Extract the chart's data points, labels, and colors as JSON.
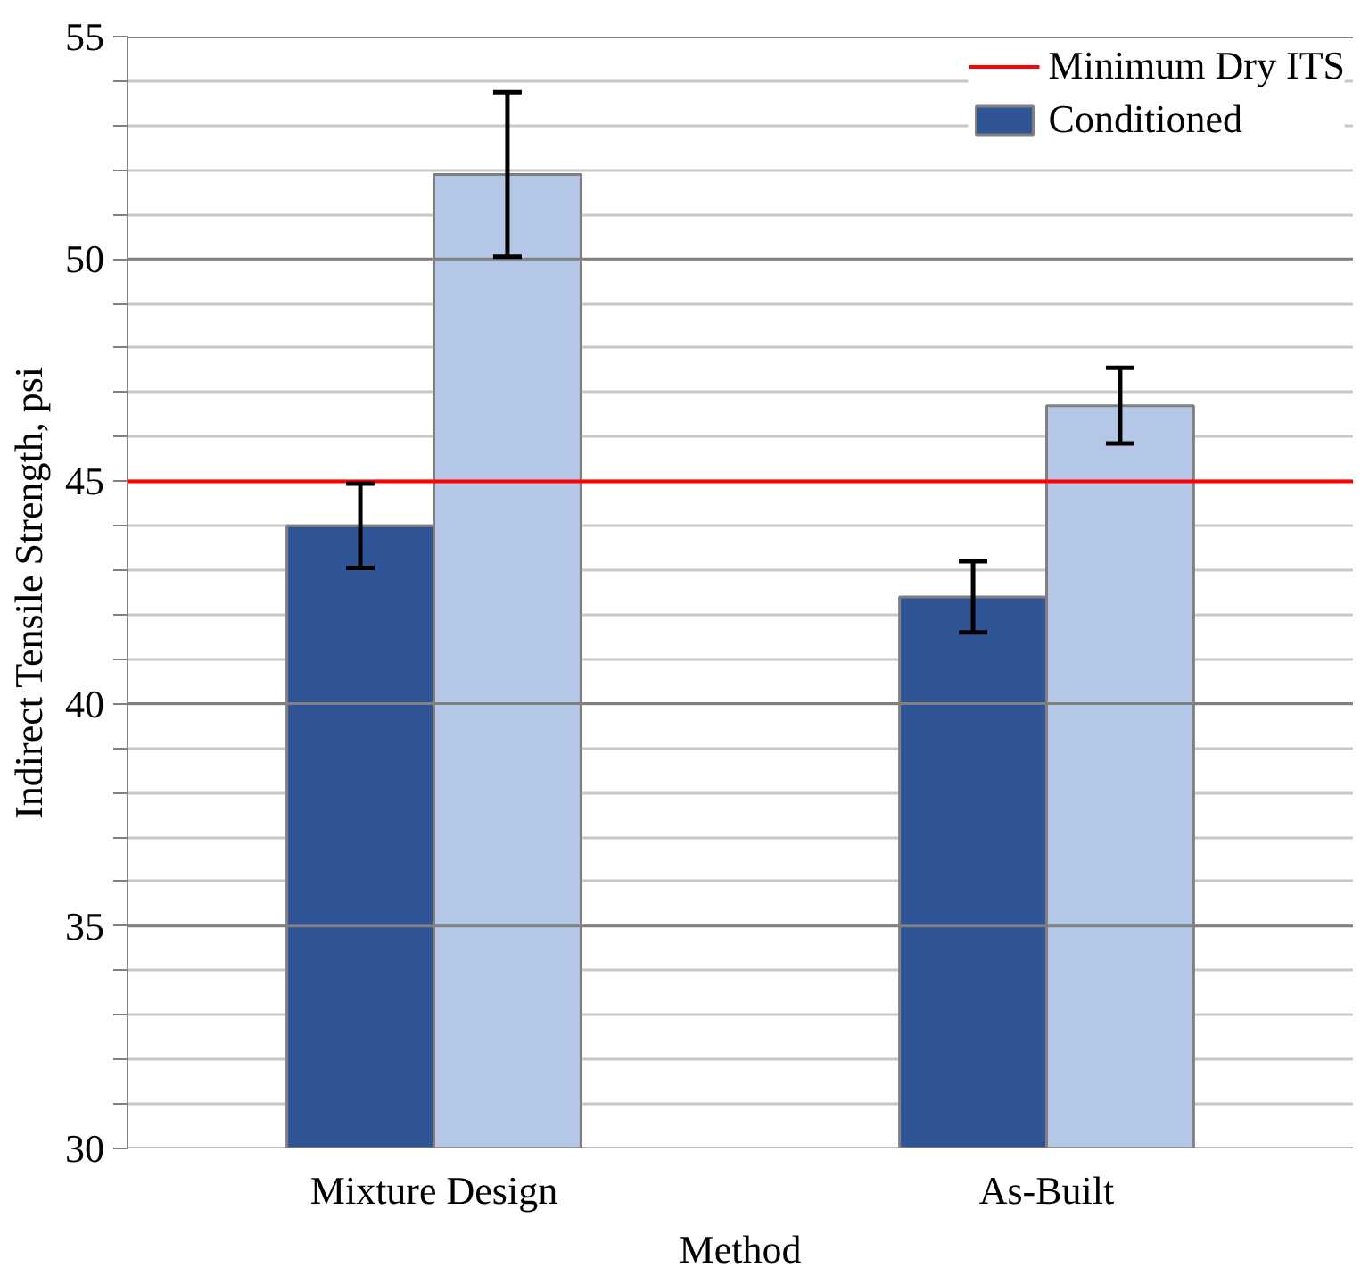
{
  "chart_data": {
    "type": "bar",
    "xlabel": "Method",
    "ylabel": "Indirect Tensile Strength, psi",
    "categories": [
      "Mixture Design",
      "As-Built"
    ],
    "series": [
      {
        "name": "Conditioned",
        "color": "#2f5597",
        "values": [
          44.0,
          42.4
        ],
        "errors": [
          0.95,
          0.8
        ]
      },
      {
        "color": "#b4c7e7",
        "values": [
          51.9,
          46.7
        ],
        "errors": [
          1.85,
          0.85
        ]
      }
    ],
    "ylim": [
      30,
      55
    ],
    "yticks": [
      30,
      {
        "value": 31,
        "label": null
      },
      {
        "value": 32,
        "label": null
      },
      {
        "value": 33,
        "label": null
      },
      {
        "value": 34,
        "label": null
      },
      35,
      {
        "value": 36,
        "label": null
      },
      {
        "value": 37,
        "label": null
      },
      {
        "value": 38,
        "label": null
      },
      {
        "value": 39,
        "label": null
      },
      40,
      {
        "value": 41,
        "label": null
      },
      {
        "value": 42,
        "label": null
      },
      {
        "value": 43,
        "label": null
      },
      {
        "value": 44,
        "label": null
      },
      45,
      {
        "value": 46,
        "label": null
      },
      {
        "value": 47,
        "label": null
      },
      {
        "value": 48,
        "label": null
      },
      {
        "value": 49,
        "label": null
      },
      50,
      {
        "value": 51,
        "label": null
      },
      {
        "value": 52,
        "label": null
      },
      {
        "value": 53,
        "label": null
      },
      {
        "value": 54,
        "label": null
      },
      55
    ],
    "ref_lines": [
      {
        "axis": "y",
        "value": 45,
        "label": "Minimum Dry ITS",
        "color": "#ff0000"
      }
    ],
    "grid": "y",
    "legend": "top right"
  }
}
